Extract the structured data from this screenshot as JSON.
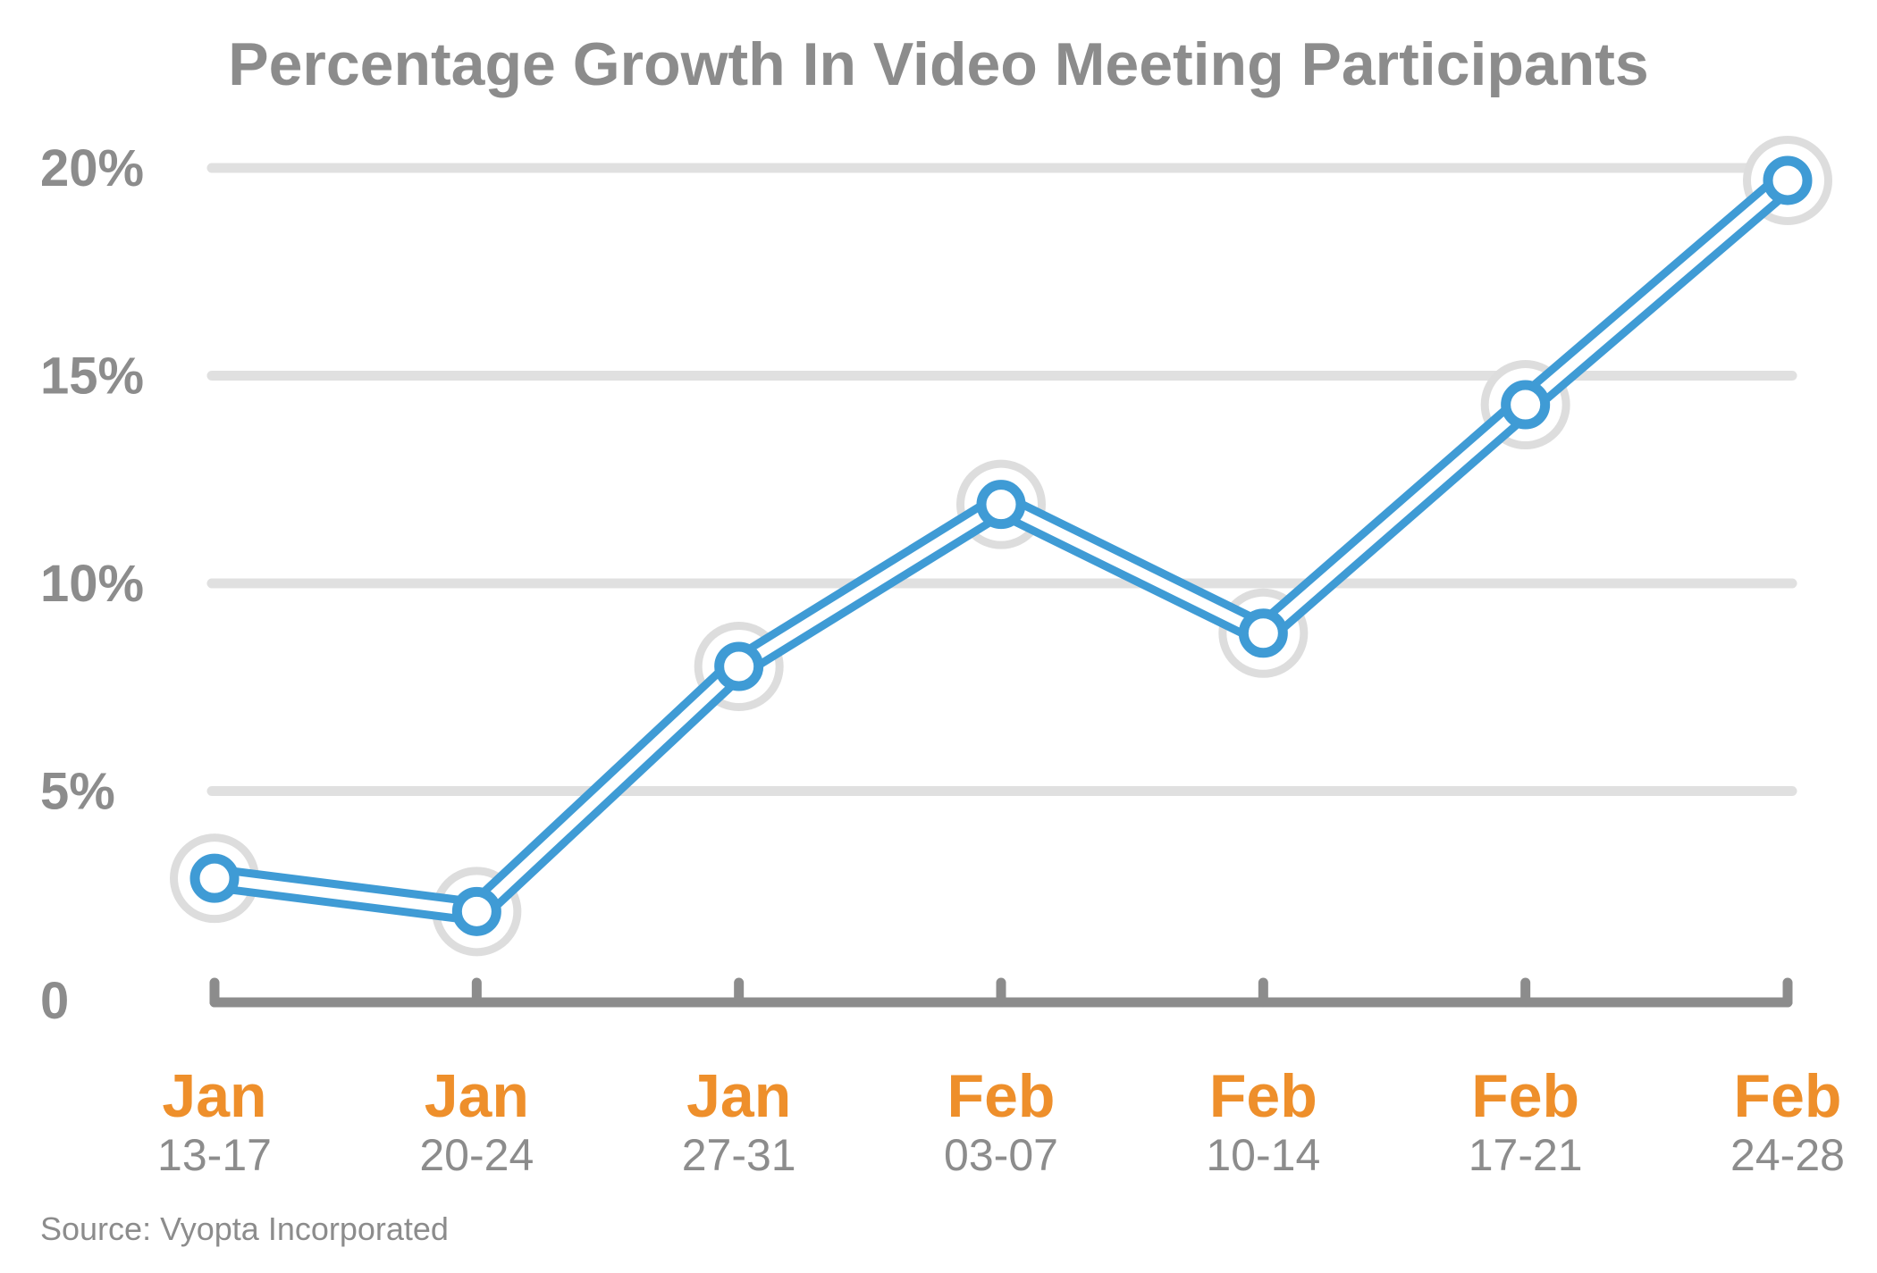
{
  "chart_data": {
    "type": "line",
    "title": "Percentage Growth In Video Meeting Participants",
    "source": "Source: Vyopta Incorporated",
    "categories": [
      {
        "month": "Jan",
        "days": "13-17"
      },
      {
        "month": "Jan",
        "days": "20-24"
      },
      {
        "month": "Jan",
        "days": "27-31"
      },
      {
        "month": "Feb",
        "days": "03-07"
      },
      {
        "month": "Feb",
        "days": "10-14"
      },
      {
        "month": "Feb",
        "days": "17-21"
      },
      {
        "month": "Feb",
        "days": "24-28"
      }
    ],
    "series": [
      {
        "values": [
          2.9,
          2.1,
          8.0,
          11.9,
          8.8,
          14.3,
          19.7
        ]
      }
    ],
    "y_ticks": [
      {
        "value": 0,
        "label": "0"
      },
      {
        "value": 5,
        "label": "5%"
      },
      {
        "value": 10,
        "label": "10%"
      },
      {
        "value": 15,
        "label": "15%"
      },
      {
        "value": 20,
        "label": "20%"
      }
    ],
    "ylim": [
      0,
      20
    ],
    "grid": true,
    "colors": {
      "line": "#3f9bd5",
      "halo": "#dddddd",
      "gridline": "#e0e0e0",
      "axis": "#8c8c8c",
      "month_label": "#ee8f2b",
      "text": "#8c8c8c"
    }
  }
}
